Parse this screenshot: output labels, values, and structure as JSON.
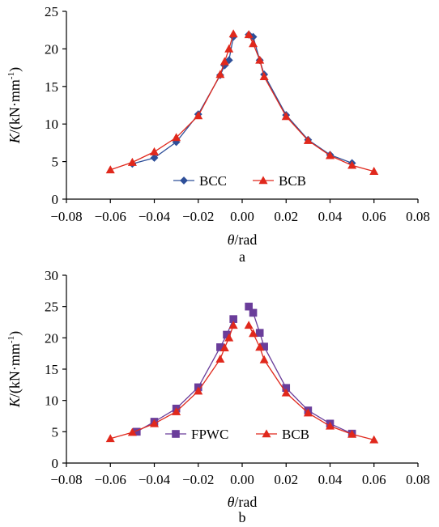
{
  "chart_data": [
    {
      "type": "line",
      "panel_label": "a",
      "xlabel_sym": "θ",
      "xlabel_unit": "/rad",
      "ylabel_sym": "K",
      "ylabel_unit": "/(kN·mm",
      "ylabel_sup": "-1",
      "ylabel_close": ")",
      "xlim": [
        -0.08,
        0.08
      ],
      "ylim": [
        0,
        25
      ],
      "xticks": [
        -0.08,
        -0.06,
        -0.04,
        -0.02,
        0.0,
        0.02,
        0.04,
        0.06,
        0.08
      ],
      "xtick_labels": [
        "−0.08",
        "−0.06",
        "−0.04",
        "−0.02",
        "0.00",
        "0.02",
        "0.04",
        "0.06",
        "0.08"
      ],
      "yticks": [
        0,
        5,
        10,
        15,
        20,
        25
      ],
      "ytick_labels": [
        "0",
        "5",
        "10",
        "15",
        "20",
        "25"
      ],
      "grid": false,
      "legend": "bottom-center",
      "series": [
        {
          "name": "BCC",
          "color": "#2e4f99",
          "marker": "diamond",
          "points": [
            [
              -0.05,
              4.7
            ],
            [
              -0.04,
              5.5
            ],
            [
              -0.03,
              7.6
            ],
            [
              -0.02,
              11.3
            ],
            [
              -0.01,
              16.5
            ],
            [
              -0.008,
              17.8
            ],
            [
              -0.006,
              18.5
            ],
            [
              -0.004,
              21.6
            ],
            [
              0.003,
              21.9
            ],
            [
              0.005,
              21.6
            ],
            [
              0.008,
              18.5
            ],
            [
              0.01,
              16.6
            ],
            [
              0.02,
              11.2
            ],
            [
              0.03,
              7.9
            ],
            [
              0.04,
              5.9
            ],
            [
              0.05,
              4.8
            ]
          ]
        },
        {
          "name": "BCB",
          "color": "#e0281c",
          "marker": "triangle",
          "points": [
            [
              -0.06,
              3.9
            ],
            [
              -0.05,
              4.9
            ],
            [
              -0.04,
              6.3
            ],
            [
              -0.03,
              8.2
            ],
            [
              -0.02,
              11.1
            ],
            [
              -0.01,
              16.6
            ],
            [
              -0.008,
              18.3
            ],
            [
              -0.006,
              20.0
            ],
            [
              -0.004,
              22.0
            ],
            [
              0.003,
              21.9
            ],
            [
              0.005,
              20.7
            ],
            [
              0.008,
              18.5
            ],
            [
              0.01,
              16.3
            ],
            [
              0.02,
              11.0
            ],
            [
              0.03,
              7.8
            ],
            [
              0.04,
              5.8
            ],
            [
              0.05,
              4.5
            ],
            [
              0.06,
              3.7
            ]
          ]
        }
      ]
    },
    {
      "type": "line",
      "panel_label": "b",
      "xlabel_sym": "θ",
      "xlabel_unit": "/rad",
      "ylabel_sym": "K",
      "ylabel_unit": "/(kN·mm",
      "ylabel_sup": "-1",
      "ylabel_close": ")",
      "xlim": [
        -0.08,
        0.08
      ],
      "ylim": [
        0,
        30
      ],
      "xticks": [
        -0.08,
        -0.06,
        -0.04,
        -0.02,
        0.0,
        0.02,
        0.04,
        0.06,
        0.08
      ],
      "xtick_labels": [
        "−0.08",
        "−0.06",
        "−0.04",
        "−0.02",
        "0.00",
        "0.02",
        "0.04",
        "0.06",
        "0.08"
      ],
      "yticks": [
        0,
        5,
        10,
        15,
        20,
        25,
        30
      ],
      "ytick_labels": [
        "0",
        "5",
        "10",
        "15",
        "20",
        "25",
        "30"
      ],
      "grid": false,
      "legend": "bottom-center",
      "series": [
        {
          "name": "FPWC",
          "color": "#6a3d9a",
          "marker": "square",
          "points": [
            [
              -0.048,
              5.0
            ],
            [
              -0.04,
              6.6
            ],
            [
              -0.03,
              8.7
            ],
            [
              -0.02,
              12.1
            ],
            [
              -0.01,
              18.5
            ],
            [
              -0.007,
              20.5
            ],
            [
              -0.004,
              23.0
            ],
            [
              0.003,
              25.0
            ],
            [
              0.005,
              24.0
            ],
            [
              0.008,
              20.8
            ],
            [
              0.01,
              18.6
            ],
            [
              0.02,
              12.0
            ],
            [
              0.03,
              8.4
            ],
            [
              0.04,
              6.3
            ],
            [
              0.05,
              4.7
            ]
          ]
        },
        {
          "name": "BCB",
          "color": "#e0281c",
          "marker": "triangle",
          "points": [
            [
              -0.06,
              3.9
            ],
            [
              -0.05,
              4.9
            ],
            [
              -0.04,
              6.3
            ],
            [
              -0.03,
              8.2
            ],
            [
              -0.02,
              11.5
            ],
            [
              -0.01,
              16.6
            ],
            [
              -0.008,
              18.4
            ],
            [
              -0.006,
              20.0
            ],
            [
              -0.004,
              22.0
            ],
            [
              0.003,
              22.0
            ],
            [
              0.005,
              20.7
            ],
            [
              0.008,
              18.5
            ],
            [
              0.01,
              16.5
            ],
            [
              0.02,
              11.2
            ],
            [
              0.03,
              8.0
            ],
            [
              0.04,
              5.9
            ],
            [
              0.05,
              4.6
            ],
            [
              0.06,
              3.7
            ]
          ]
        }
      ]
    }
  ]
}
